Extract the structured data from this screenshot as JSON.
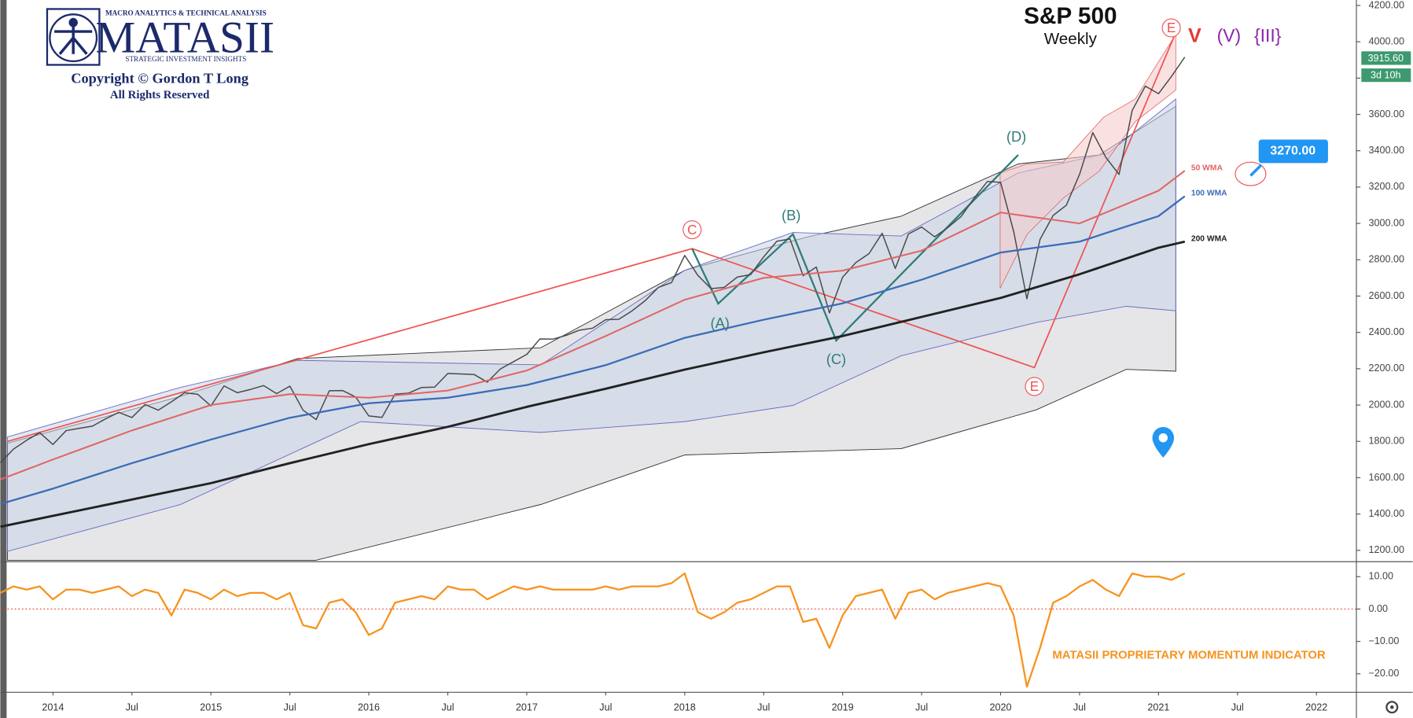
{
  "logo": {
    "tagline": "MACRO ANALYTICS & TECHNICAL ANALYSIS",
    "name": "MATASII",
    "subtitle": "STRATEGIC INVESTMENT INSIGHTS",
    "copyright": "Copyright © Gordon T Long",
    "rights": "All Rights Reserved"
  },
  "chart_data": [
    {
      "type": "line",
      "title": "S&P 500",
      "subtitle": "Weekly",
      "xlim": [
        "2013-09",
        "2022-04"
      ],
      "xticks": [
        {
          "value": "2014-01",
          "label": "2014"
        },
        {
          "value": "2014-07",
          "label": "Jul"
        },
        {
          "value": "2015-01",
          "label": "2015"
        },
        {
          "value": "2015-07",
          "label": "Jul"
        },
        {
          "value": "2016-01",
          "label": "2016"
        },
        {
          "value": "2016-07",
          "label": "Jul"
        },
        {
          "value": "2017-01",
          "label": "2017"
        },
        {
          "value": "2017-07",
          "label": "Jul"
        },
        {
          "value": "2018-01",
          "label": "2018"
        },
        {
          "value": "2018-07",
          "label": "Jul"
        },
        {
          "value": "2019-01",
          "label": "2019"
        },
        {
          "value": "2019-07",
          "label": "Jul"
        },
        {
          "value": "2020-01",
          "label": "2020"
        },
        {
          "value": "2020-07",
          "label": "Jul"
        },
        {
          "value": "2021-01",
          "label": "2021"
        },
        {
          "value": "2021-07",
          "label": "Jul"
        },
        {
          "value": "2022-01",
          "label": "2022"
        }
      ],
      "ylim": [
        1145,
        4230
      ],
      "yticks": [
        {
          "value": 1200,
          "label": "1200.00"
        },
        {
          "value": 1400,
          "label": "1400.00"
        },
        {
          "value": 1600,
          "label": "1600.00"
        },
        {
          "value": 1800,
          "label": "1800.00"
        },
        {
          "value": 2000,
          "label": "2000.00"
        },
        {
          "value": 2200,
          "label": "2200.00"
        },
        {
          "value": 2400,
          "label": "2400.00"
        },
        {
          "value": 2600,
          "label": "2600.00"
        },
        {
          "value": 2800,
          "label": "2800.00"
        },
        {
          "value": 3000,
          "label": "3000.00"
        },
        {
          "value": 3200,
          "label": "3200.00"
        },
        {
          "value": 3400,
          "label": "3400.00"
        },
        {
          "value": 3600,
          "label": "3600.00"
        },
        {
          "value": 3800,
          "label": "3800.00"
        },
        {
          "value": 4000,
          "label": "4000.00"
        },
        {
          "value": 4200,
          "label": "4200.00"
        }
      ],
      "grid": false,
      "series": [
        {
          "color": "#4a4a4a",
          "x": [
            "2013-09",
            "2013-10",
            "2013-11",
            "2013-12",
            "2014-01",
            "2014-02",
            "2014-03",
            "2014-04",
            "2014-05",
            "2014-06",
            "2014-07",
            "2014-08",
            "2014-09",
            "2014-10",
            "2014-11",
            "2014-12",
            "2015-01",
            "2015-02",
            "2015-03",
            "2015-04",
            "2015-05",
            "2015-06",
            "2015-07",
            "2015-08",
            "2015-09",
            "2015-10",
            "2015-11",
            "2015-12",
            "2016-01",
            "2016-02",
            "2016-03",
            "2016-04",
            "2016-05",
            "2016-06",
            "2016-07",
            "2016-08",
            "2016-09",
            "2016-10",
            "2016-11",
            "2016-12",
            "2017-01",
            "2017-02",
            "2017-03",
            "2017-04",
            "2017-05",
            "2017-06",
            "2017-07",
            "2017-08",
            "2017-09",
            "2017-10",
            "2017-11",
            "2017-12",
            "2018-01",
            "2018-02",
            "2018-03",
            "2018-04",
            "2018-05",
            "2018-06",
            "2018-07",
            "2018-08",
            "2018-09",
            "2018-10",
            "2018-11",
            "2018-12",
            "2019-01",
            "2019-02",
            "2019-03",
            "2019-04",
            "2019-05",
            "2019-06",
            "2019-07",
            "2019-08",
            "2019-09",
            "2019-10",
            "2019-11",
            "2019-12",
            "2020-01",
            "2020-02",
            "2020-03",
            "2020-04",
            "2020-05",
            "2020-06",
            "2020-07",
            "2020-08",
            "2020-09",
            "2020-10",
            "2020-11",
            "2020-12",
            "2021-01",
            "2021-02",
            "2021-03"
          ],
          "values": [
            1682,
            1757,
            1806,
            1848,
            1783,
            1859,
            1872,
            1884,
            1924,
            1960,
            1931,
            2003,
            1972,
            2018,
            2068,
            2059,
            1995,
            2105,
            2068,
            2086,
            2107,
            2063,
            2104,
            1972,
            1920,
            2079,
            2080,
            2044,
            1940,
            1932,
            2060,
            2065,
            2097,
            2099,
            2174,
            2171,
            2168,
            2126,
            2199,
            2239,
            2279,
            2364,
            2363,
            2384,
            2412,
            2423,
            2470,
            2472,
            2519,
            2575,
            2648,
            2674,
            2824,
            2714,
            2641,
            2648,
            2705,
            2718,
            2816,
            2902,
            2914,
            2712,
            2760,
            2507,
            2704,
            2784,
            2834,
            2946,
            2752,
            2942,
            2980,
            2926,
            2977,
            3038,
            3141,
            3231,
            3226,
            2954,
            2585,
            2912,
            3044,
            3100,
            3271,
            3500,
            3363,
            3270,
            3622,
            3756,
            3714,
            3811,
            3915.6
          ]
        },
        {
          "name": "50 WMA",
          "color": "#e06666",
          "x": [
            "2013-09",
            "2014-01",
            "2014-07",
            "2015-01",
            "2015-07",
            "2016-01",
            "2016-07",
            "2017-01",
            "2017-07",
            "2018-01",
            "2018-07",
            "2019-01",
            "2019-07",
            "2020-01",
            "2020-07",
            "2021-01",
            "2021-03"
          ],
          "values": [
            1590,
            1700,
            1860,
            2000,
            2060,
            2040,
            2080,
            2190,
            2380,
            2580,
            2700,
            2740,
            2850,
            3060,
            3000,
            3180,
            3290
          ]
        },
        {
          "name": "100 WMA",
          "color": "#3d6bb8",
          "x": [
            "2013-09",
            "2014-01",
            "2014-07",
            "2015-01",
            "2015-07",
            "2016-01",
            "2016-07",
            "2017-01",
            "2017-07",
            "2018-01",
            "2018-07",
            "2019-01",
            "2019-07",
            "2020-01",
            "2020-07",
            "2021-01",
            "2021-03"
          ],
          "values": [
            1455,
            1540,
            1680,
            1810,
            1930,
            2010,
            2040,
            2110,
            2220,
            2370,
            2470,
            2560,
            2690,
            2840,
            2900,
            3040,
            3150
          ]
        },
        {
          "name": "200 WMA",
          "color": "#222222",
          "x": [
            "2013-09",
            "2014-01",
            "2014-07",
            "2015-01",
            "2015-07",
            "2016-01",
            "2016-07",
            "2017-01",
            "2017-07",
            "2018-01",
            "2018-07",
            "2019-01",
            "2019-07",
            "2020-01",
            "2020-07",
            "2021-01",
            "2021-03"
          ],
          "values": [
            1330,
            1390,
            1480,
            1570,
            1680,
            1785,
            1880,
            1990,
            2090,
            2195,
            2290,
            2380,
            2485,
            2590,
            2720,
            2866,
            2900
          ]
        }
      ],
      "annotations": [
        "C",
        "(B)",
        "(A)",
        "(C)",
        "(D)",
        "E",
        "E",
        "V",
        "(V)",
        "{III}",
        "3270.00",
        "3915.60",
        "3d 10h"
      ]
    },
    {
      "type": "line",
      "title": "MATASII PROPRIETARY MOMENTUM INDICATOR",
      "ylim": [
        -25.3,
        14.2
      ],
      "yticks": [
        {
          "value": 10,
          "label": "10.00"
        },
        {
          "value": 0,
          "label": "0.00"
        },
        {
          "value": -10,
          "label": "−10.00"
        },
        {
          "value": -20,
          "label": "−20.00"
        }
      ],
      "reference_line": {
        "value": 0,
        "color": "#e53935"
      },
      "series": [
        {
          "color": "#f7931e",
          "x": [
            "2013-09",
            "2013-10",
            "2013-11",
            "2013-12",
            "2014-01",
            "2014-02",
            "2014-03",
            "2014-04",
            "2014-05",
            "2014-06",
            "2014-07",
            "2014-08",
            "2014-09",
            "2014-10",
            "2014-11",
            "2014-12",
            "2015-01",
            "2015-02",
            "2015-03",
            "2015-04",
            "2015-05",
            "2015-06",
            "2015-07",
            "2015-08",
            "2015-09",
            "2015-10",
            "2015-11",
            "2015-12",
            "2016-01",
            "2016-02",
            "2016-03",
            "2016-04",
            "2016-05",
            "2016-06",
            "2016-07",
            "2016-08",
            "2016-09",
            "2016-10",
            "2016-11",
            "2016-12",
            "2017-01",
            "2017-02",
            "2017-03",
            "2017-04",
            "2017-05",
            "2017-06",
            "2017-07",
            "2017-08",
            "2017-09",
            "2017-10",
            "2017-11",
            "2017-12",
            "2018-01",
            "2018-02",
            "2018-03",
            "2018-04",
            "2018-05",
            "2018-06",
            "2018-07",
            "2018-08",
            "2018-09",
            "2018-10",
            "2018-11",
            "2018-12",
            "2019-01",
            "2019-02",
            "2019-03",
            "2019-04",
            "2019-05",
            "2019-06",
            "2019-07",
            "2019-08",
            "2019-09",
            "2019-10",
            "2019-11",
            "2019-12",
            "2020-01",
            "2020-02",
            "2020-03",
            "2020-04",
            "2020-05",
            "2020-06",
            "2020-07",
            "2020-08",
            "2020-09",
            "2020-10",
            "2020-11",
            "2020-12",
            "2021-01",
            "2021-02",
            "2021-03"
          ],
          "values": [
            5,
            7,
            6,
            7,
            3,
            6,
            6,
            5,
            6,
            7,
            4,
            6,
            5,
            -2,
            6,
            5,
            3,
            6,
            4,
            5,
            5,
            3,
            5,
            -5,
            -6,
            2,
            3,
            -1,
            -8,
            -6,
            2,
            3,
            4,
            3,
            7,
            6,
            6,
            3,
            5,
            7,
            6,
            7,
            6,
            6,
            6,
            6,
            7,
            6,
            7,
            7,
            7,
            8,
            11,
            -1,
            -3,
            -1,
            2,
            3,
            5,
            7,
            7,
            -4,
            -3,
            -12,
            -2,
            4,
            5,
            6,
            -3,
            5,
            6,
            3,
            5,
            6,
            7,
            8,
            7,
            -2,
            -24,
            -12,
            2,
            4,
            7,
            9,
            6,
            4,
            11,
            10,
            10,
            9,
            11
          ]
        }
      ]
    }
  ]
}
